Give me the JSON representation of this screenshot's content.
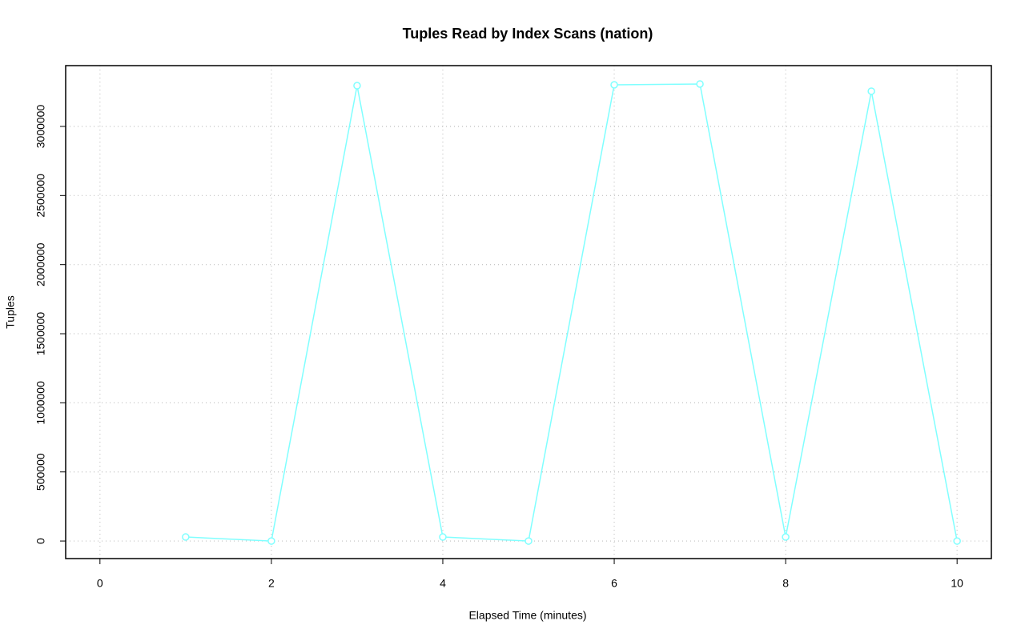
{
  "chart_data": {
    "type": "line",
    "title": "Tuples Read by Index Scans (nation)",
    "x_label": "Elapsed Time (minutes)",
    "y_label": "Tuples",
    "x": [
      1,
      2,
      3,
      4,
      5,
      6,
      7,
      8,
      9,
      10
    ],
    "series": [
      {
        "name": "Tuples",
        "color": "#80ffff",
        "values": [
          29000,
          0,
          3295000,
          29000,
          0,
          3301000,
          3307000,
          29000,
          3255000,
          0
        ]
      }
    ],
    "xlim": [
      -0.4,
      10.4
    ],
    "xticks": [
      0,
      2,
      4,
      6,
      8,
      10
    ],
    "ylim": [
      -127000,
      3440000
    ],
    "yticks": [
      0,
      500000,
      1000000,
      1500000,
      2000000,
      2500000,
      3000000
    ],
    "grid": true,
    "markers": true
  }
}
